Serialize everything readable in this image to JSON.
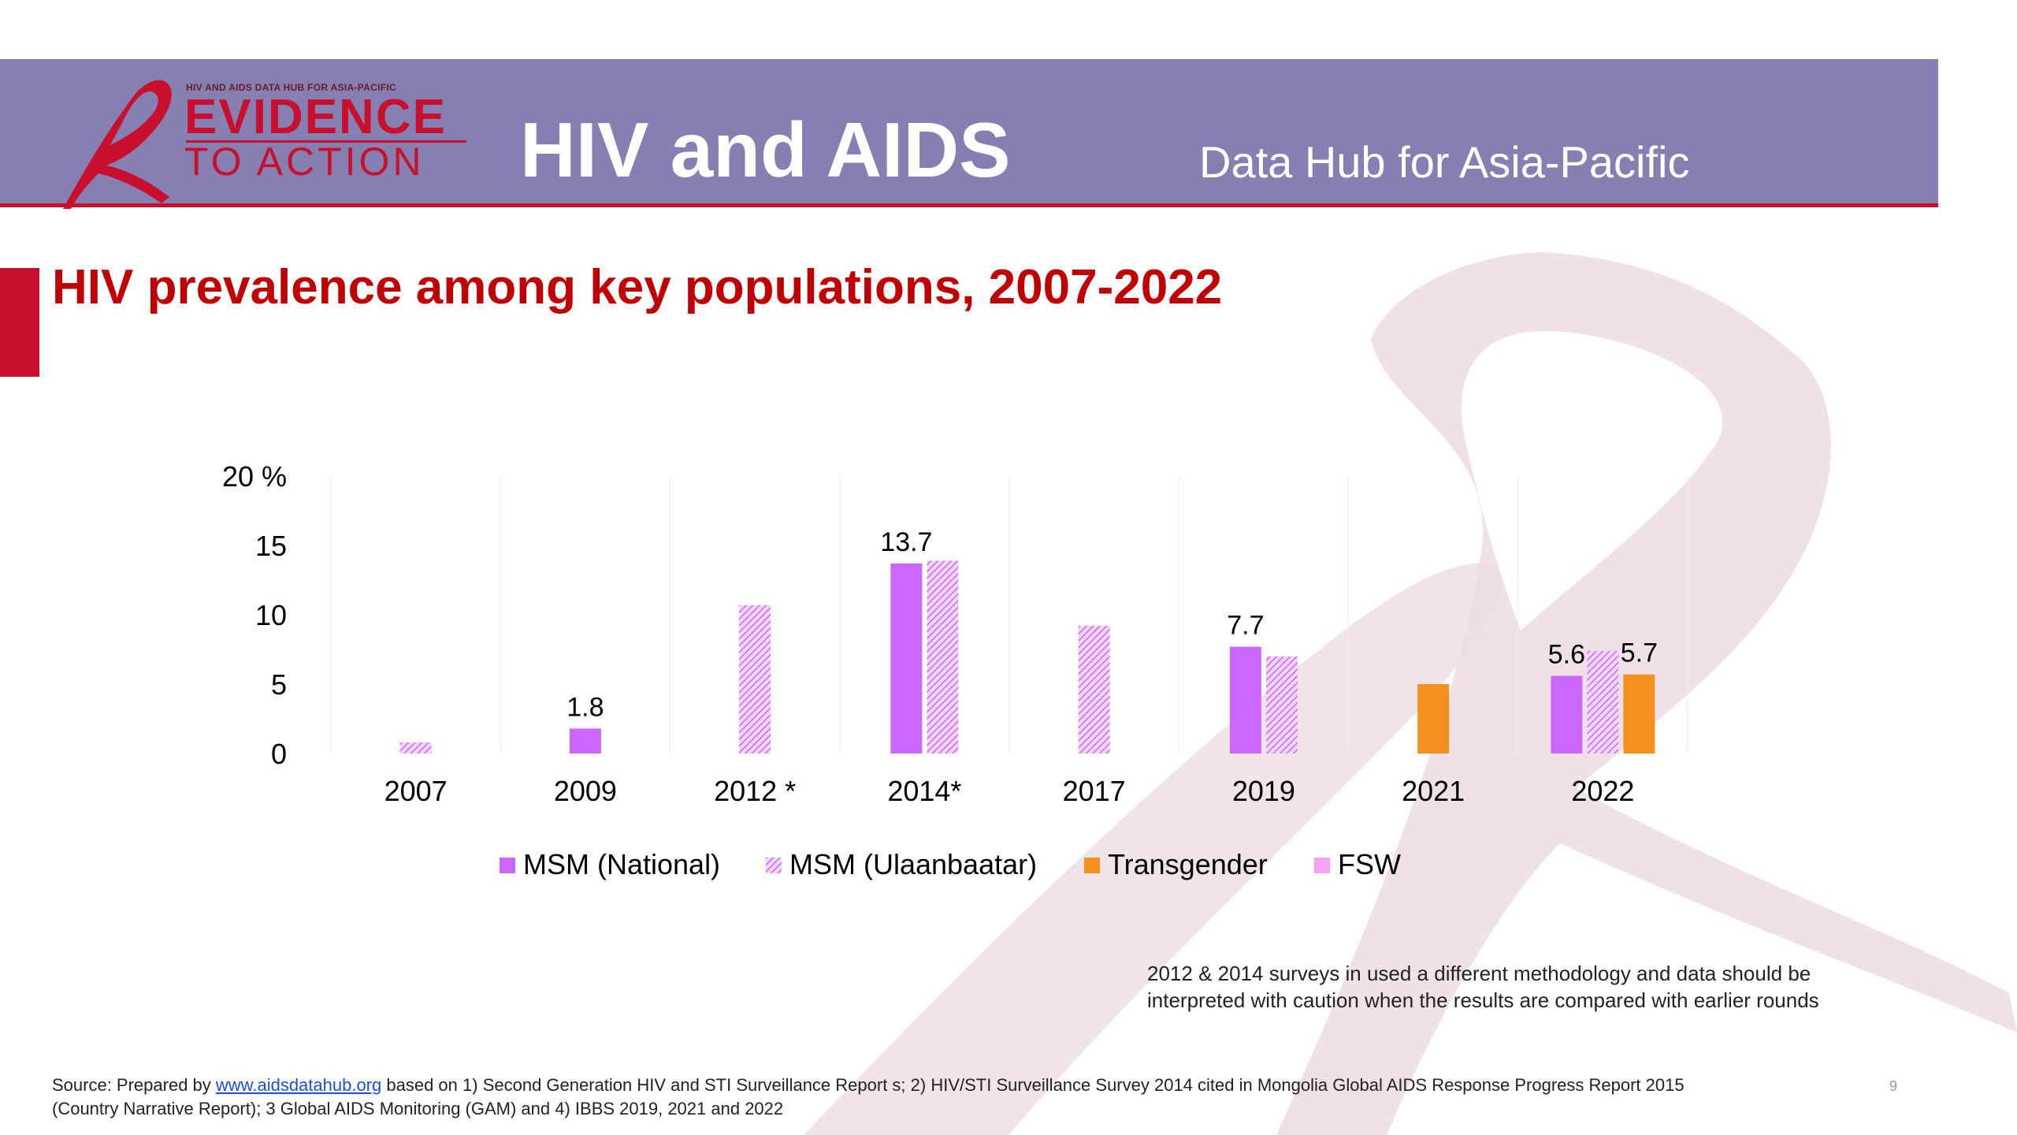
{
  "header": {
    "logo_small_text": "HIV AND AIDS DATA HUB FOR ASIA-PACIFIC",
    "logo_line1": "EVIDENCE",
    "logo_line2": "TO ACTION",
    "title": "HIV and AIDS",
    "subtitle": "Data Hub for Asia-Pacific"
  },
  "slide": {
    "title": "HIV prevalence among key populations, 2007-2022",
    "note_line1": "2012  & 2014 surveys in used a different methodology and data should be",
    "note_line2": "interpreted with caution when the results are compared with earlier rounds",
    "source_prefix": "Source: Prepared by ",
    "source_link": "www.aidsdatahub.org",
    "source_rest": "  based on 1) Second Generation HIV and STI Surveillance Report s; 2) HIV/STI Surveillance Survey 2014 cited in Mongolia Global AIDS Response Progress Report 2015",
    "source_line2": "(Country Narrative Report); 3 Global AIDS Monitoring (GAM) and 4) IBBS 2019, 2021 and 2022",
    "page_number": "9"
  },
  "colors": {
    "header_bg": "#8580b1",
    "accent_red": "#c8102e",
    "msm_national": "#cc66ff",
    "msm_ulaanbaatar": "#cc66ff",
    "transgender": "#f58f1f",
    "fsw": "#f5a3f5",
    "ribbon_bg": "#eedde4"
  },
  "chart_data": {
    "type": "bar",
    "categories": [
      "2007",
      "2009",
      "2012 *",
      "2014*",
      "2017",
      "2019",
      "2021",
      "2022"
    ],
    "y_unit": "%",
    "ylim": [
      0,
      20
    ],
    "yticks": [
      0,
      5,
      10,
      15,
      20
    ],
    "grid": true,
    "legend_position": "bottom",
    "series": [
      {
        "name": "MSM (National)",
        "pattern": "solid",
        "values": [
          null,
          1.8,
          null,
          13.7,
          null,
          7.7,
          null,
          5.6
        ]
      },
      {
        "name": "MSM (Ulaanbaatar)",
        "pattern": "hatched",
        "values": [
          0.8,
          null,
          10.7,
          13.9,
          9.2,
          7.0,
          null,
          7.4
        ]
      },
      {
        "name": "Transgender",
        "pattern": "solid",
        "values": [
          null,
          null,
          null,
          null,
          null,
          null,
          5.0,
          5.7
        ]
      },
      {
        "name": "FSW",
        "pattern": "solid",
        "values": [
          null,
          null,
          null,
          null,
          null,
          null,
          null,
          null
        ]
      }
    ],
    "data_labels": [
      {
        "series": 0,
        "category": 1,
        "text": "1.8"
      },
      {
        "series": 0,
        "category": 3,
        "text": "13.7"
      },
      {
        "series": 0,
        "category": 5,
        "text": "7.7"
      },
      {
        "series": 0,
        "category": 7,
        "text": "5.6"
      },
      {
        "series": 2,
        "category": 7,
        "text": "5.7"
      }
    ]
  }
}
